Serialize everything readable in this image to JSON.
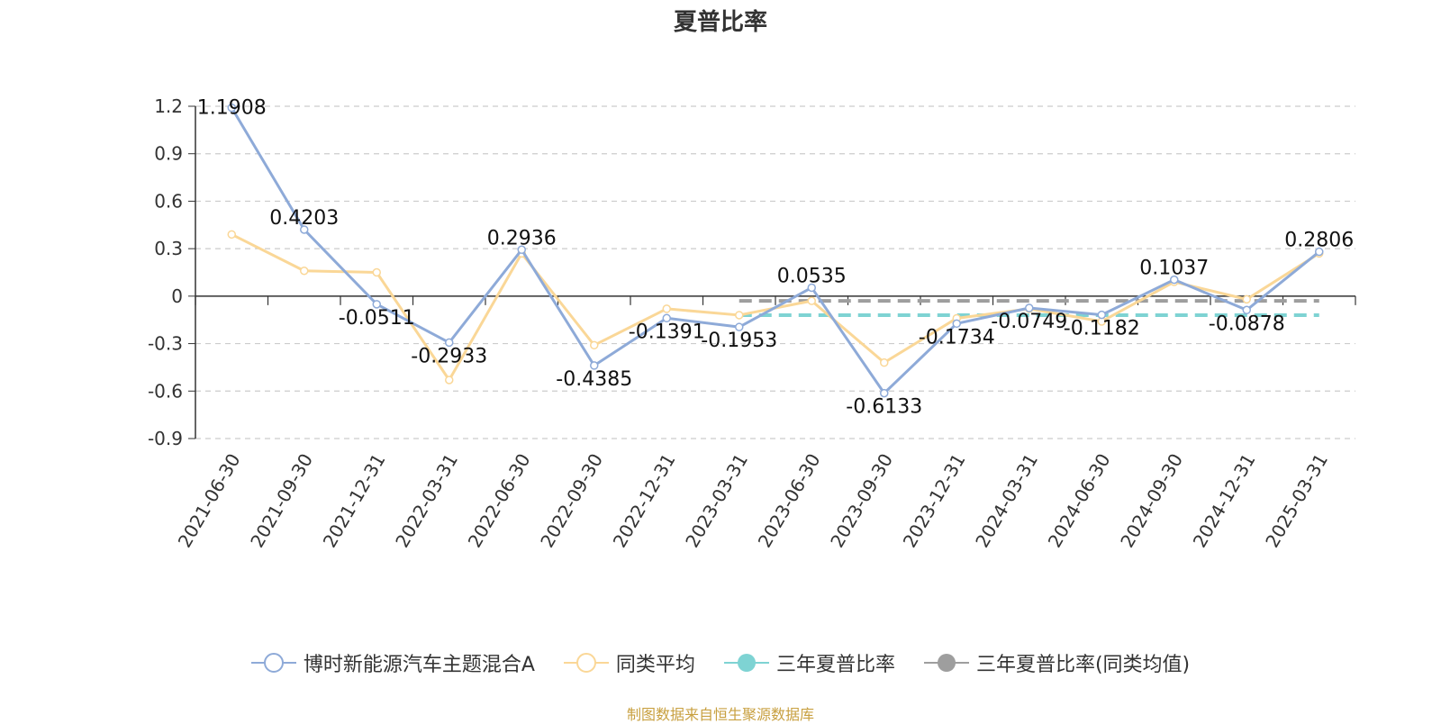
{
  "chart_data": {
    "type": "line",
    "title": "夏普比率",
    "categories": [
      "2021-06-30",
      "2021-09-30",
      "2021-12-31",
      "2022-03-31",
      "2022-06-30",
      "2022-09-30",
      "2022-12-31",
      "2023-03-31",
      "2023-06-30",
      "2023-09-30",
      "2023-12-31",
      "2024-03-31",
      "2024-06-30",
      "2024-09-30",
      "2024-12-31",
      "2025-03-31"
    ],
    "ylim": [
      -0.9,
      1.2
    ],
    "yticks": [
      1.2,
      0.9,
      0.6,
      0.3,
      0,
      -0.3,
      -0.6,
      -0.9
    ],
    "yticks_labels": [
      "1.2",
      "0.9",
      "0.6",
      "0.3",
      "0",
      "-0.3",
      "-0.6",
      "-0.9"
    ],
    "grid": true,
    "legend_position": "bottom",
    "series": [
      {
        "name": "博时新能源汽车主题混合A",
        "color": "#8eaad8",
        "values": [
          1.1908,
          0.4203,
          -0.0511,
          -0.2933,
          0.2936,
          -0.4385,
          -0.1391,
          -0.1953,
          0.0535,
          -0.6133,
          -0.1734,
          -0.0749,
          -0.1182,
          0.1037,
          -0.0878,
          0.2806
        ],
        "labels": [
          "1.1908",
          "0.4203",
          "-0.0511",
          "-0.2933",
          "0.2936",
          "-0.4385",
          "-0.1391",
          "-0.1953",
          "0.0535",
          "-0.6133",
          "-0.1734",
          "-0.0749",
          "-0.1182",
          "0.1037",
          "-0.0878",
          "0.2806"
        ]
      },
      {
        "name": "同类平均",
        "color": "#fad797",
        "values": [
          0.39,
          0.16,
          0.15,
          -0.53,
          0.27,
          -0.31,
          -0.08,
          -0.12,
          -0.03,
          -0.42,
          -0.14,
          -0.08,
          -0.16,
          0.09,
          -0.02,
          0.27
        ]
      },
      {
        "name": "三年夏普比率",
        "color": "#7ed3d3",
        "start_index": 7,
        "value": -0.12
      },
      {
        "name": "三年夏普比率(同类均值)",
        "color": "#9e9e9e",
        "start_index": 7,
        "value": -0.03
      }
    ]
  },
  "footer": "制图数据来自恒生聚源数据库"
}
